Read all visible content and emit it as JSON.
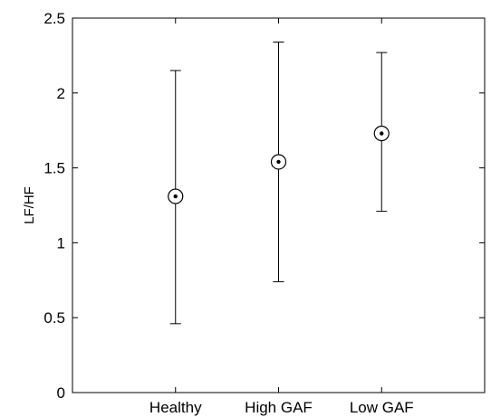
{
  "chart_data": {
    "type": "scatter",
    "title": "",
    "xlabel": "",
    "ylabel": "LF/HF",
    "categories": [
      "Healthy",
      "High GAF",
      "Low GAF"
    ],
    "ylim": [
      0,
      2.5
    ],
    "yticks": [
      "0",
      "0.5",
      "1",
      "1.5",
      "2",
      "2.5"
    ],
    "grid": false,
    "points": [
      {
        "category": "Healthy",
        "mean": 1.31,
        "lower": 0.46,
        "upper": 2.15
      },
      {
        "category": "High GAF",
        "mean": 1.54,
        "lower": 0.74,
        "upper": 2.34
      },
      {
        "category": "Low GAF",
        "mean": 1.73,
        "lower": 1.21,
        "upper": 2.27
      }
    ],
    "colors": {
      "axis": "#000000",
      "marker": "#000000",
      "background": "#ffffff"
    }
  }
}
